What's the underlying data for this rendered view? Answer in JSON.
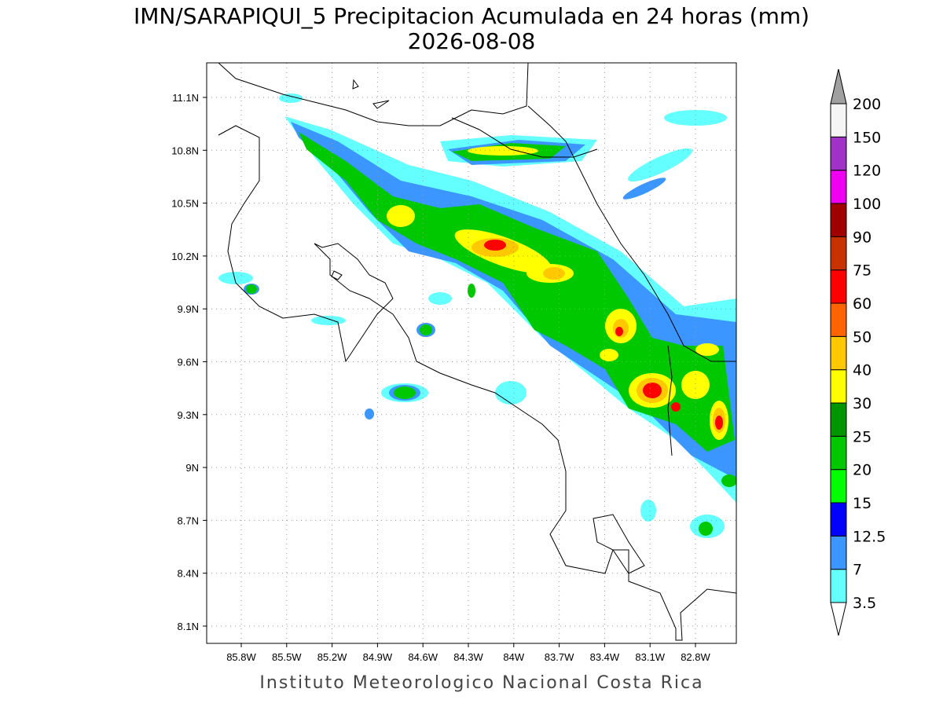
{
  "title": "IMN/SARAPIQUI_5 Precipitacion Acumulada en 24 horas (mm)",
  "date": "2026-08-08",
  "lat_labels": [
    "11.1N",
    "10.8N",
    "10.5N",
    "10.2N",
    "9.9N",
    "9.6N",
    "9.3N",
    "9N",
    "8.7N",
    "8.4N",
    "8.1N"
  ],
  "lon_labels": [
    "85.8W",
    "85.5W",
    "85.2W",
    "84.9W",
    "84.6W",
    "84.3W",
    "84W",
    "83.7W",
    "83.4W",
    "83.1W",
    "82.8W"
  ],
  "colorbar": {
    "levels": [
      3.5,
      7,
      12.5,
      15,
      20,
      25,
      30,
      40,
      50,
      60,
      75,
      90,
      100,
      120,
      150,
      200
    ],
    "colors": [
      "#64ffff",
      "#3c96ff",
      "#0000ff",
      "#00ff00",
      "#00c800",
      "#009600",
      "#ffff00",
      "#ffc800",
      "#ff6400",
      "#ff0000",
      "#c83200",
      "#a00000",
      "#f000f0",
      "#a032c8",
      "#f5f5f5"
    ],
    "under_color": "#ffffff",
    "over_color": "#a0a0a0"
  },
  "footer": "Instituto Meteorologico Nacional Costa Rica"
}
